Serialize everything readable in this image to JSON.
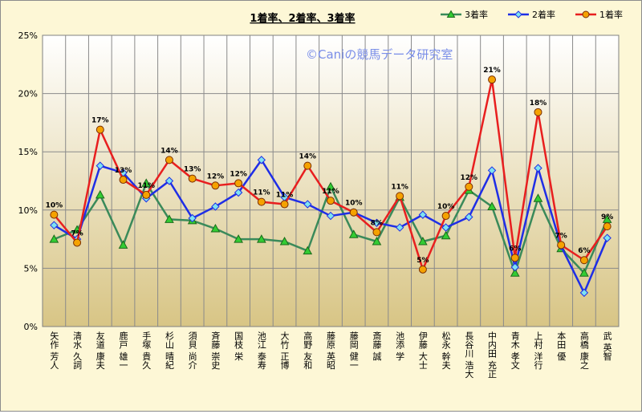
{
  "chart_data": {
    "type": "line",
    "title": "1着率、2着率、3着率",
    "watermark": "©Caniの競馬データ研究室",
    "ylim": [
      0,
      25
    ],
    "yticks": [
      "0%",
      "5%",
      "10%",
      "15%",
      "20%",
      "25%"
    ],
    "ytick_values": [
      0,
      5,
      10,
      15,
      20,
      25
    ],
    "grid": true,
    "legend_position": "top-right",
    "categories": [
      "矢作 芳人",
      "清水 久詞",
      "友道 康夫",
      "鹿戸 雄一",
      "手塚 貴久",
      "杉山 晴紀",
      "須貝 尚介",
      "斉藤 崇史",
      "国枝 栄",
      "池江 泰寿",
      "大竹 正博",
      "高野 友和",
      "藤原 英昭",
      "藤岡 健一",
      "斎藤 誠",
      "池添 学",
      "伊藤 大士",
      "松永 幹夫",
      "長谷川 浩大",
      "中内田 充正",
      "青木 孝文",
      "上村 洋行",
      "本田 優",
      "高橋 康之",
      "武 英智"
    ],
    "series": [
      {
        "name": "3着率",
        "color": "#3a8a5a",
        "marker": "triangle",
        "marker_fill": "#33cc33",
        "values": [
          7.5,
          8.3,
          11.3,
          7.0,
          12.3,
          9.2,
          9.1,
          8.4,
          7.5,
          7.5,
          7.3,
          6.5,
          12.0,
          7.9,
          7.3,
          11.1,
          7.3,
          7.8,
          11.7,
          10.3,
          4.6,
          11.0,
          6.7,
          4.6,
          9.2
        ]
      },
      {
        "name": "2着率",
        "color": "#1f2ee6",
        "marker": "diamond",
        "marker_fill": "#7fe3f0",
        "values": [
          8.7,
          7.5,
          13.8,
          13.2,
          11.0,
          12.5,
          9.3,
          10.3,
          11.5,
          14.3,
          11.1,
          10.5,
          9.5,
          9.8,
          8.9,
          8.5,
          9.6,
          8.5,
          9.4,
          13.4,
          5.1,
          13.6,
          6.9,
          2.9,
          7.6
        ]
      },
      {
        "name": "1着率",
        "color": "#e81f1f",
        "marker": "circle",
        "marker_fill": "#f5a200",
        "values": [
          9.6,
          7.2,
          16.9,
          12.6,
          11.3,
          14.3,
          12.7,
          12.1,
          12.3,
          10.7,
          10.5,
          13.8,
          10.8,
          9.8,
          8.1,
          11.2,
          4.9,
          9.5,
          12.0,
          21.2,
          5.9,
          18.4,
          7.0,
          5.7,
          8.6
        ]
      }
    ],
    "data_labels": [
      "10%",
      "7%",
      "17%",
      "13%",
      "11%",
      "14%",
      "13%",
      "12%",
      "12%",
      "11%",
      "11%",
      "14%",
      "11%",
      "10%",
      "8%",
      "11%",
      "5%",
      "10%",
      "12%",
      "21%",
      "6%",
      "18%",
      "7%",
      "6%",
      "9%"
    ]
  }
}
